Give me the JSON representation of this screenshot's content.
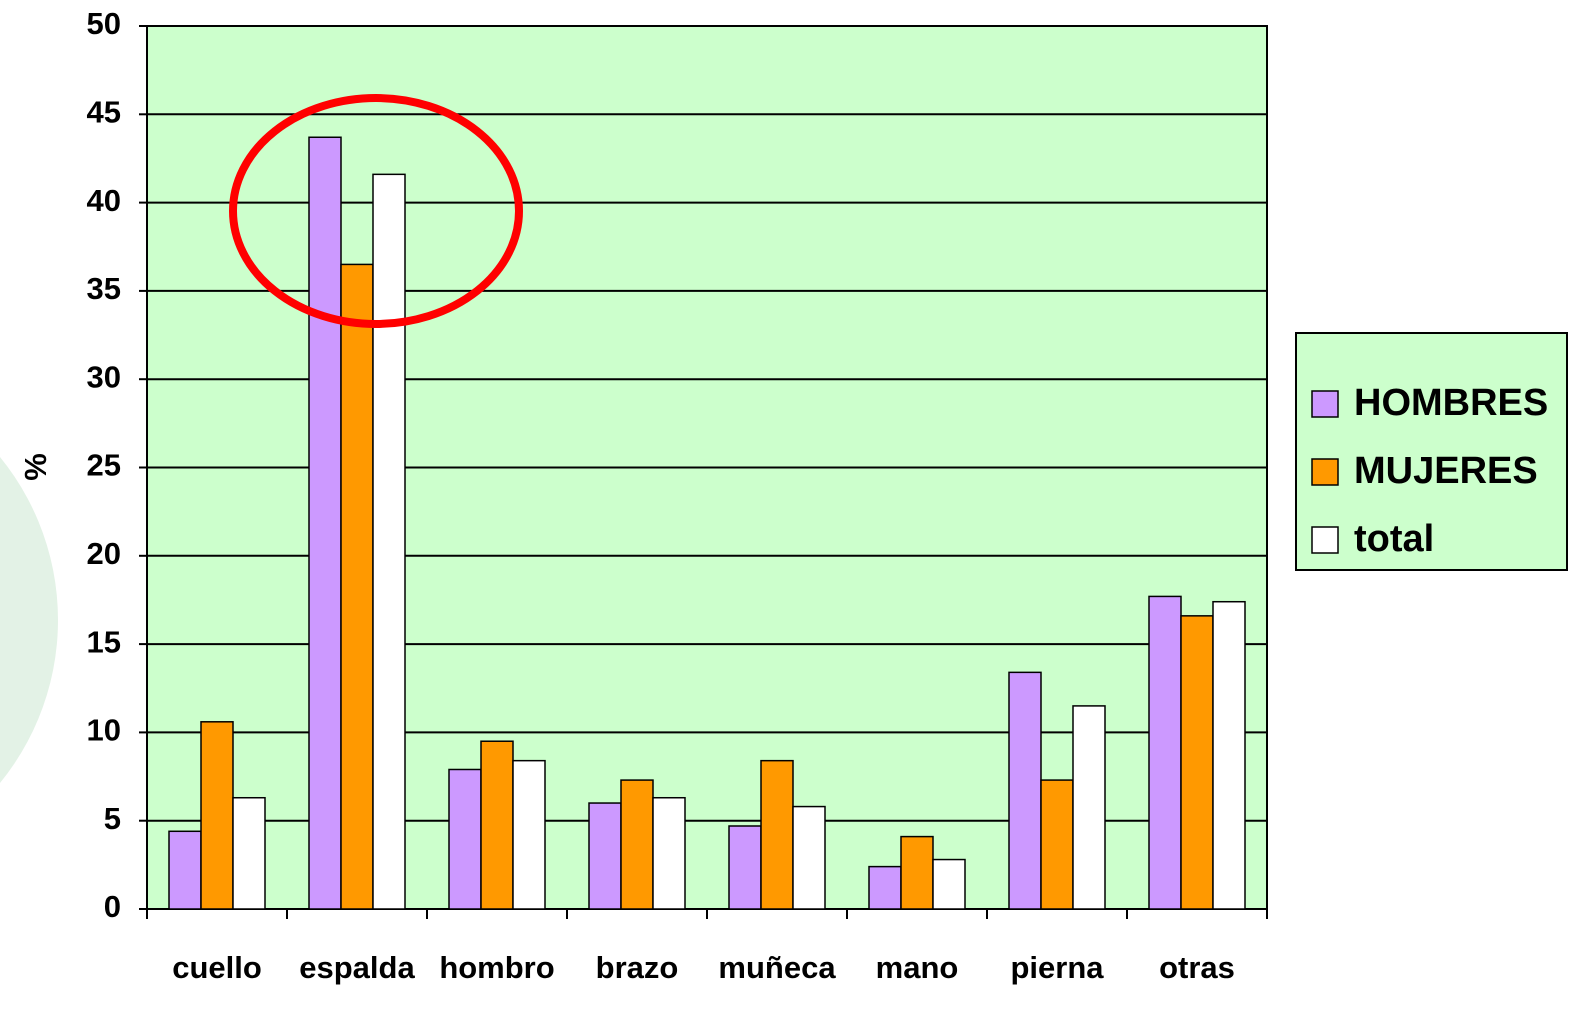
{
  "chart_data": {
    "type": "bar",
    "categories": [
      "cuello",
      "espalda",
      "hombro",
      "brazo",
      "muñeca",
      "mano",
      "pierna",
      "otras"
    ],
    "series": [
      {
        "name": "HOMBRES",
        "color": "#cc99ff",
        "values": [
          4.4,
          43.7,
          7.9,
          6.0,
          4.7,
          2.4,
          13.4,
          17.7
        ]
      },
      {
        "name": "MUJERES",
        "color": "#ff9900",
        "values": [
          10.6,
          36.5,
          9.5,
          7.3,
          8.4,
          4.1,
          7.3,
          16.6
        ]
      },
      {
        "name": "total",
        "color": "#ffffff",
        "values": [
          6.3,
          41.6,
          8.4,
          6.3,
          5.8,
          2.8,
          11.5,
          17.4
        ]
      }
    ],
    "ylabel": "%",
    "ylim": [
      0,
      50
    ],
    "yticks": [
      0,
      5,
      10,
      15,
      20,
      25,
      30,
      35,
      40,
      45,
      50
    ],
    "grid": true,
    "legend": "right",
    "plot_color": "#ccffcc"
  }
}
